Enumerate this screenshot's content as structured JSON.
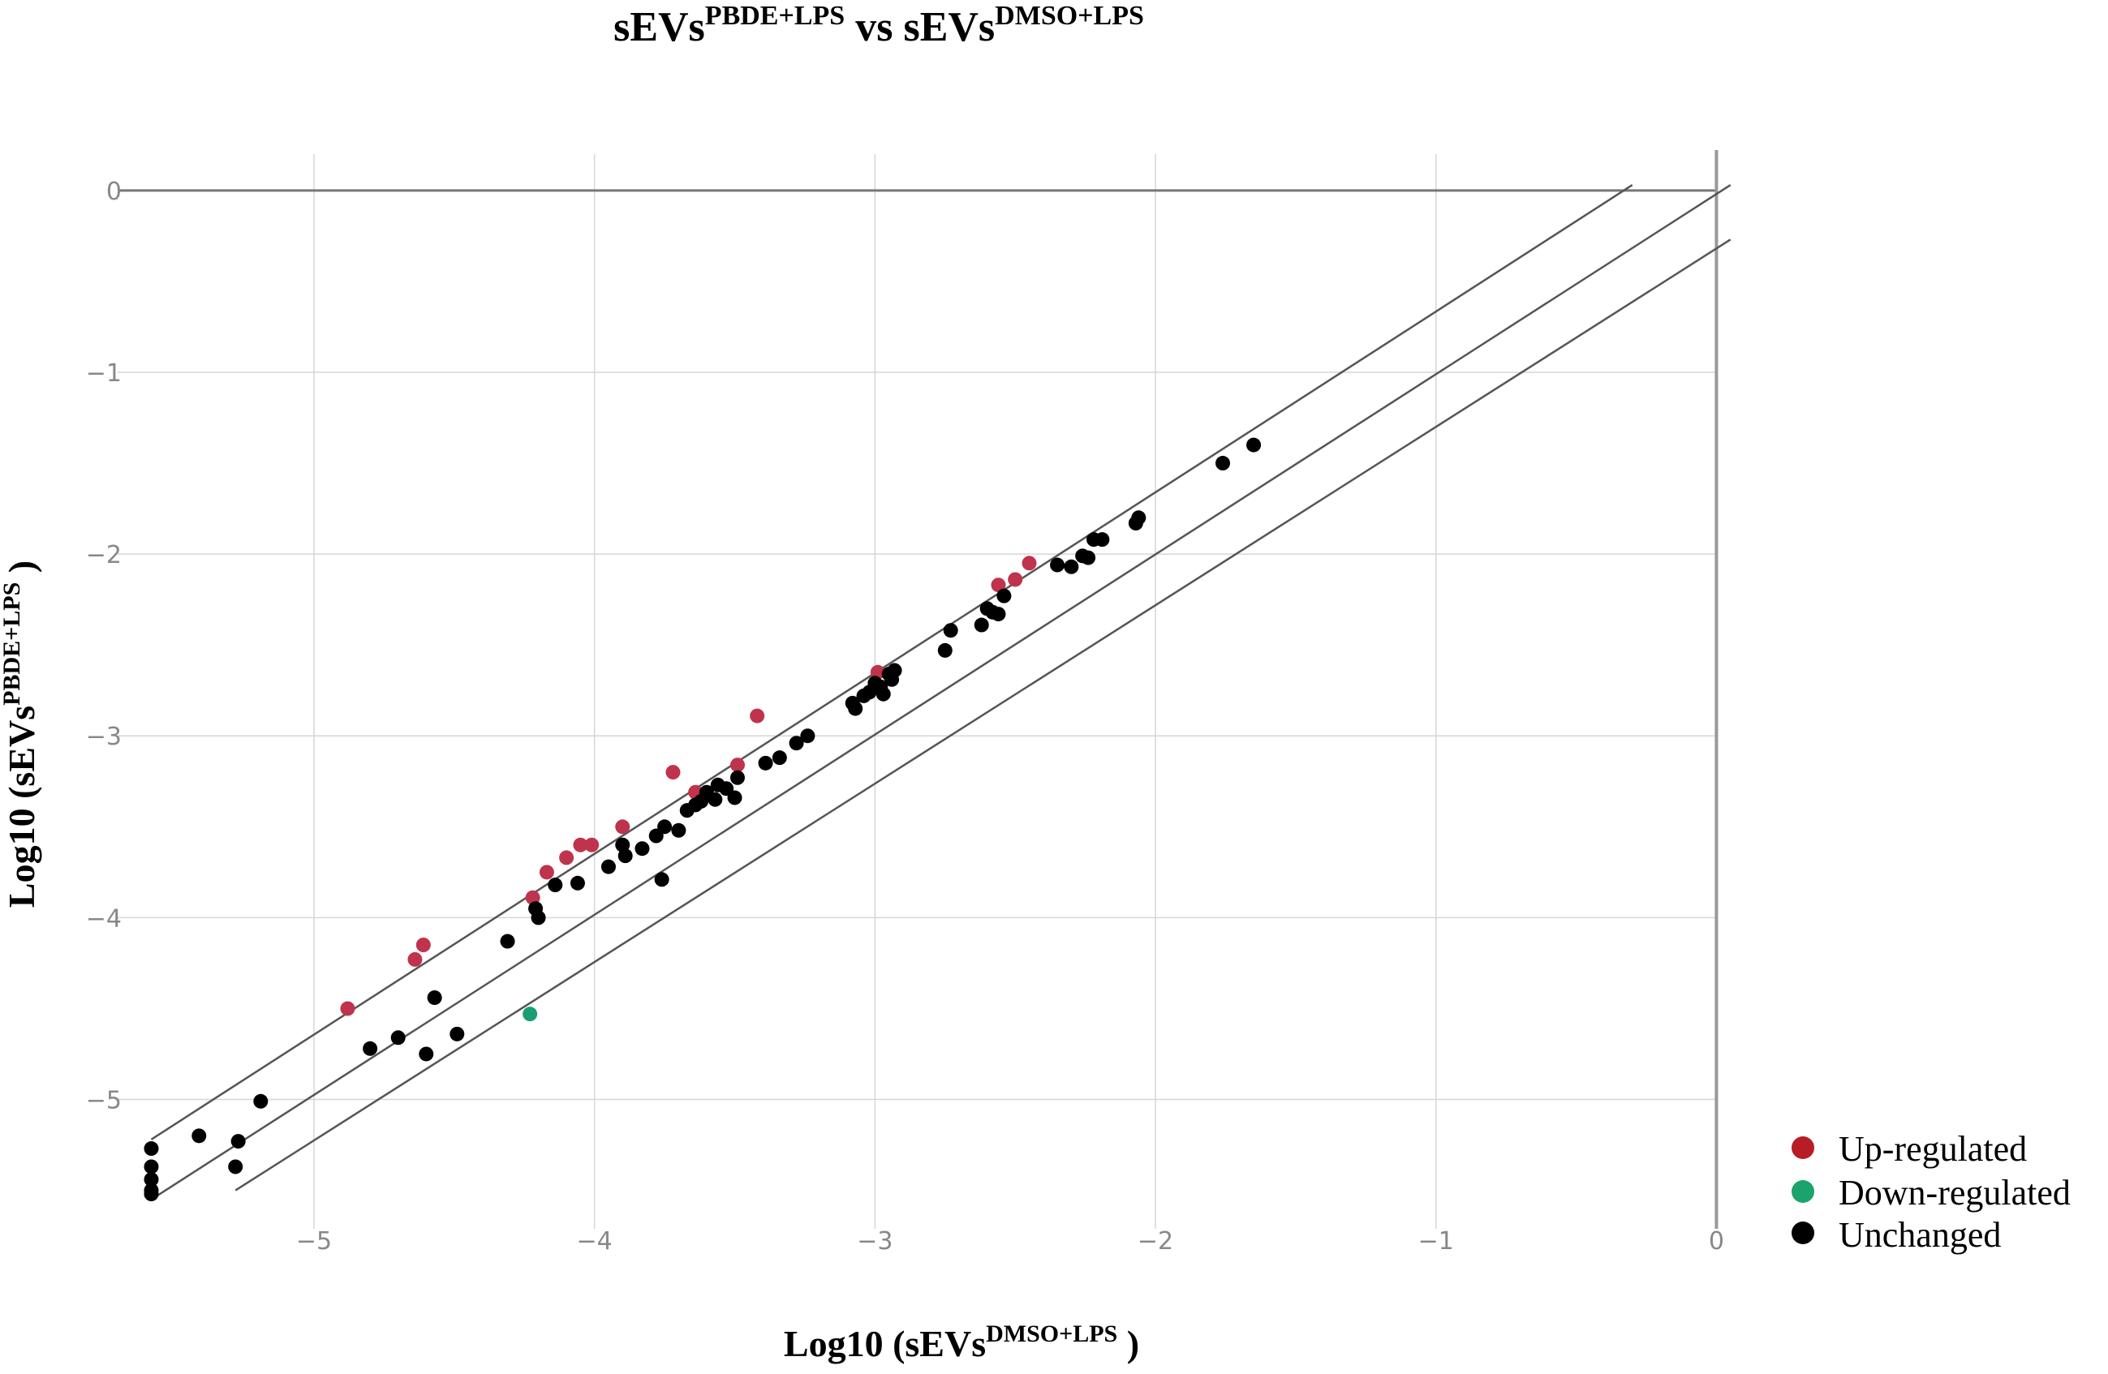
{
  "chart_data": {
    "type": "scatter",
    "title": {
      "base": "sEVs",
      "sup": "PBDE+LPS",
      "mid": " vs sEVs",
      "sup2": "DMSO+LPS"
    },
    "xlabel": {
      "prefix": "Log10 (sEVs",
      "sup": "DMSO+LPS",
      "suffix": " )"
    },
    "ylabel": {
      "prefix": "Log10 (sEVs",
      "sup": "PBDE+LPS",
      "suffix": " )"
    },
    "xlim": [
      -5.7,
      0.1
    ],
    "ylim": [
      -5.6,
      0.2
    ],
    "x_ticks": [
      -5,
      -4,
      -3,
      -2,
      -1,
      0
    ],
    "y_ticks": [
      0,
      -1,
      -2,
      -3,
      -4,
      -5
    ],
    "x_tick_labels": [
      "−5",
      "−4",
      "−3",
      "−2",
      "−1",
      "0"
    ],
    "y_tick_labels": [
      "0",
      "−1",
      "−2",
      "−3",
      "−4",
      "−5"
    ],
    "grid": true,
    "legend_position": "bottom-right",
    "reference_lines": [
      {
        "x": [
          -5.58,
          -0.3
        ],
        "y": [
          -5.22,
          0.03
        ]
      },
      {
        "x": [
          -5.58,
          0.05
        ],
        "y": [
          -5.55,
          0.03
        ]
      },
      {
        "x": [
          -5.28,
          0.05
        ],
        "y": [
          -5.5,
          -0.27
        ]
      }
    ],
    "series": [
      {
        "name": "Up-regulated",
        "color": "#c0334d",
        "points": [
          [
            -4.88,
            -4.5
          ],
          [
            -4.64,
            -4.23
          ],
          [
            -4.61,
            -4.15
          ],
          [
            -4.22,
            -3.89
          ],
          [
            -4.17,
            -3.75
          ],
          [
            -4.1,
            -3.67
          ],
          [
            -4.05,
            -3.6
          ],
          [
            -4.01,
            -3.6
          ],
          [
            -3.9,
            -3.5
          ],
          [
            -3.72,
            -3.2
          ],
          [
            -3.64,
            -3.31
          ],
          [
            -3.49,
            -3.16
          ],
          [
            -3.42,
            -2.89
          ],
          [
            -2.99,
            -2.65
          ],
          [
            -2.56,
            -2.17
          ],
          [
            -2.5,
            -2.14
          ],
          [
            -2.45,
            -2.05
          ]
        ]
      },
      {
        "name": "Down-regulated",
        "color": "#1a9e74",
        "points": [
          [
            -4.23,
            -4.53
          ]
        ]
      },
      {
        "name": "Unchanged",
        "color": "#000000",
        "points": [
          [
            -5.58,
            -5.27
          ],
          [
            -5.58,
            -5.37
          ],
          [
            -5.58,
            -5.44
          ],
          [
            -5.58,
            -5.5
          ],
          [
            -5.58,
            -5.52
          ],
          [
            -5.41,
            -5.2
          ],
          [
            -5.28,
            -5.37
          ],
          [
            -5.27,
            -5.23
          ],
          [
            -5.19,
            -5.01
          ],
          [
            -4.8,
            -4.72
          ],
          [
            -4.7,
            -4.66
          ],
          [
            -4.6,
            -4.75
          ],
          [
            -4.57,
            -4.44
          ],
          [
            -4.49,
            -4.64
          ],
          [
            -4.31,
            -4.13
          ],
          [
            -4.21,
            -3.95
          ],
          [
            -4.2,
            -4.0
          ],
          [
            -4.14,
            -3.82
          ],
          [
            -4.06,
            -3.81
          ],
          [
            -3.95,
            -3.72
          ],
          [
            -3.9,
            -3.6
          ],
          [
            -3.89,
            -3.66
          ],
          [
            -3.83,
            -3.62
          ],
          [
            -3.78,
            -3.55
          ],
          [
            -3.76,
            -3.79
          ],
          [
            -3.75,
            -3.5
          ],
          [
            -3.7,
            -3.52
          ],
          [
            -3.67,
            -3.41
          ],
          [
            -3.64,
            -3.38
          ],
          [
            -3.62,
            -3.36
          ],
          [
            -3.6,
            -3.31
          ],
          [
            -3.57,
            -3.35
          ],
          [
            -3.56,
            -3.27
          ],
          [
            -3.53,
            -3.29
          ],
          [
            -3.5,
            -3.34
          ],
          [
            -3.49,
            -3.23
          ],
          [
            -3.39,
            -3.15
          ],
          [
            -3.34,
            -3.12
          ],
          [
            -3.28,
            -3.04
          ],
          [
            -3.24,
            -3.0
          ],
          [
            -3.08,
            -2.82
          ],
          [
            -3.07,
            -2.85
          ],
          [
            -3.04,
            -2.78
          ],
          [
            -3.02,
            -2.76
          ],
          [
            -3.0,
            -2.71
          ],
          [
            -2.98,
            -2.73
          ],
          [
            -2.97,
            -2.77
          ],
          [
            -2.95,
            -2.66
          ],
          [
            -2.94,
            -2.69
          ],
          [
            -2.93,
            -2.64
          ],
          [
            -2.75,
            -2.53
          ],
          [
            -2.73,
            -2.42
          ],
          [
            -2.62,
            -2.39
          ],
          [
            -2.6,
            -2.3
          ],
          [
            -2.58,
            -2.32
          ],
          [
            -2.56,
            -2.33
          ],
          [
            -2.54,
            -2.23
          ],
          [
            -2.35,
            -2.06
          ],
          [
            -2.3,
            -2.07
          ],
          [
            -2.26,
            -2.01
          ],
          [
            -2.24,
            -2.02
          ],
          [
            -2.22,
            -1.92
          ],
          [
            -2.19,
            -1.92
          ],
          [
            -2.07,
            -1.83
          ],
          [
            -2.06,
            -1.8
          ],
          [
            -1.76,
            -1.5
          ],
          [
            -1.65,
            -1.4
          ]
        ]
      }
    ]
  }
}
